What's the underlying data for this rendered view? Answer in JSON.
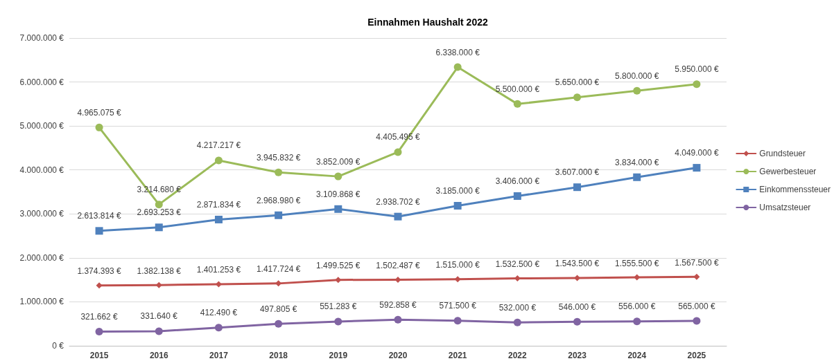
{
  "chart_data": {
    "type": "line",
    "title": "Einnahmen Haushalt 2022",
    "categories": [
      "2015",
      "2016",
      "2017",
      "2018",
      "2019",
      "2020",
      "2021",
      "2022",
      "2023",
      "2024",
      "2025"
    ],
    "series": [
      {
        "name": "Grundsteuer",
        "color": "#c0504d",
        "marker": "diamond",
        "values": [
          1374393,
          1382138,
          1401253,
          1417724,
          1499525,
          1502487,
          1515000,
          1532500,
          1543500,
          1555500,
          1567500
        ],
        "value_labels": [
          "1.374.393 €",
          "1.382.138 €",
          "1.401.253 €",
          "1.417.724 €",
          "1.499.525 €",
          "1.502.487 €",
          "1.515.000 €",
          "1.532.500 €",
          "1.543.500 €",
          "1.555.500 €",
          "1.567.500 €"
        ]
      },
      {
        "name": "Gewerbesteuer",
        "color": "#9bbb59",
        "marker": "circle",
        "values": [
          4965075,
          3214680,
          4217217,
          3945832,
          3852009,
          4405495,
          6338000,
          5500000,
          5650000,
          5800000,
          5950000
        ],
        "value_labels": [
          "4.965.075 €",
          "3.214.680 €",
          "4.217.217 €",
          "3.945.832 €",
          "3.852.009 €",
          "4.405.495 €",
          "6.338.000 €",
          "5.500.000 €",
          "5.650.000 €",
          "5.800.000 €",
          "5.950.000 €"
        ]
      },
      {
        "name": "Einkommenssteuer",
        "color": "#4f81bd",
        "marker": "square",
        "values": [
          2613814,
          2693253,
          2871834,
          2968980,
          3109868,
          2938702,
          3185000,
          3406000,
          3607000,
          3834000,
          4049000
        ],
        "value_labels": [
          "2.613.814 €",
          "2.693.253 €",
          "2.871.834 €",
          "2.968.980 €",
          "3.109.868 €",
          "2.938.702 €",
          "3.185.000 €",
          "3.406.000 €",
          "3.607.000 €",
          "3.834.000 €",
          "4.049.000 €"
        ]
      },
      {
        "name": "Umsatzsteuer",
        "color": "#8064a2",
        "marker": "circle",
        "values": [
          321662,
          331640,
          412490,
          497805,
          551283,
          592858,
          571500,
          532000,
          546000,
          556000,
          565000
        ],
        "value_labels": [
          "321.662 €",
          "331.640 €",
          "412.490 €",
          "497.805 €",
          "551.283 €",
          "592.858 €",
          "571.500 €",
          "532.000 €",
          "546.000 €",
          "556.000 €",
          "565.000 €"
        ]
      }
    ],
    "ylim": [
      0,
      7000000
    ],
    "yticks": [
      {
        "value": 0,
        "label": "0 €"
      },
      {
        "value": 1000000,
        "label": "1.000.000 €"
      },
      {
        "value": 2000000,
        "label": "2.000.000 €"
      },
      {
        "value": 3000000,
        "label": "3.000.000 €"
      },
      {
        "value": 4000000,
        "label": "4.000.000 €"
      },
      {
        "value": 5000000,
        "label": "5.000.000 €"
      },
      {
        "value": 6000000,
        "label": "6.000.000 €"
      },
      {
        "value": 7000000,
        "label": "7.000.000 €"
      }
    ],
    "grid": "y",
    "legend": "right",
    "line_style": "solid"
  }
}
